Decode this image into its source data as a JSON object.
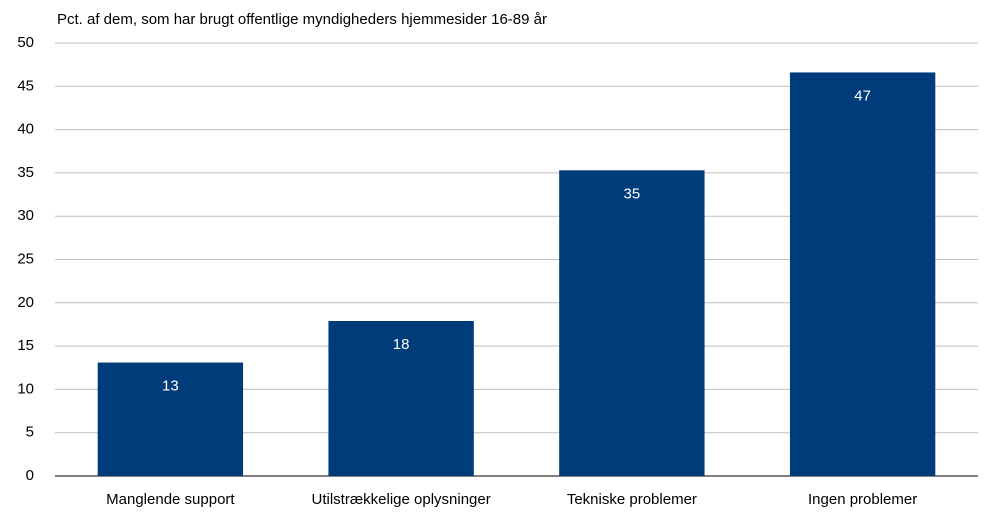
{
  "chart_data": {
    "type": "bar",
    "title": "Pct. af dem, som har brugt offentlige myndigheders hjemmesider 16-89 år",
    "categories": [
      "Manglende support",
      "Utilstrækkelige oplysninger",
      "Tekniske problemer",
      "Ingen problemer"
    ],
    "values": [
      13.1,
      17.9,
      35.3,
      46.6
    ],
    "value_labels": [
      "13",
      "18",
      "35",
      "47"
    ],
    "color": "#003b7a",
    "ylim": [
      0,
      50
    ],
    "yticks": [
      0,
      5,
      10,
      15,
      20,
      25,
      30,
      35,
      40,
      45,
      50
    ],
    "grid": true
  }
}
